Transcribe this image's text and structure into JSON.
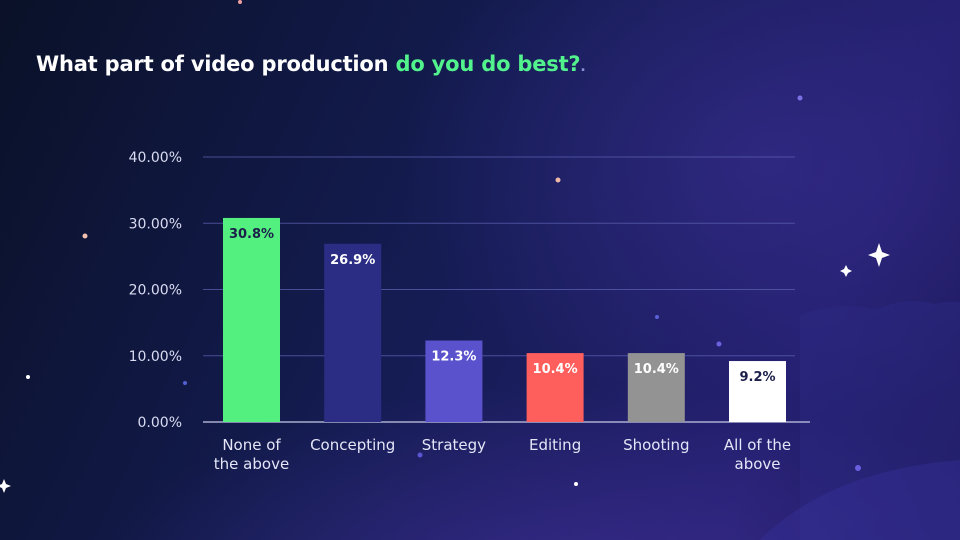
{
  "slide": {
    "title_part1": "What part of video production ",
    "title_accent": "do you do best?",
    "title_end": ".",
    "accent_color": "#52f28c"
  },
  "chart_data": {
    "type": "bar",
    "title": "What part of video production do you do best?",
    "xlabel": "",
    "ylabel": "",
    "ylim": [
      0,
      40
    ],
    "yticks": [
      "0.00%",
      "10.00%",
      "20.00%",
      "30.00%",
      "40.00%"
    ],
    "grid": true,
    "categories": [
      "None of the above",
      "Concepting",
      "Strategy",
      "Editing",
      "Shooting",
      "All of the above"
    ],
    "category_lines": [
      [
        "None of",
        "the above"
      ],
      [
        "Concepting"
      ],
      [
        "Strategy"
      ],
      [
        "Editing"
      ],
      [
        "Shooting"
      ],
      [
        "All of the",
        "above"
      ]
    ],
    "values": [
      30.8,
      26.9,
      12.3,
      10.4,
      10.4,
      9.2
    ],
    "data_labels": [
      "30.8%",
      "26.9%",
      "12.3%",
      "10.4%",
      "10.4%",
      "9.2%"
    ],
    "bar_colors": [
      "#53f07f",
      "#2b2d85",
      "#5a52cc",
      "#ff5f5c",
      "#939393",
      "#ffffff"
    ],
    "label_colors": [
      "#1b1f4a",
      "#ffffff",
      "#ffffff",
      "#ffffff",
      "#ffffff",
      "#1b1f4a"
    ]
  }
}
